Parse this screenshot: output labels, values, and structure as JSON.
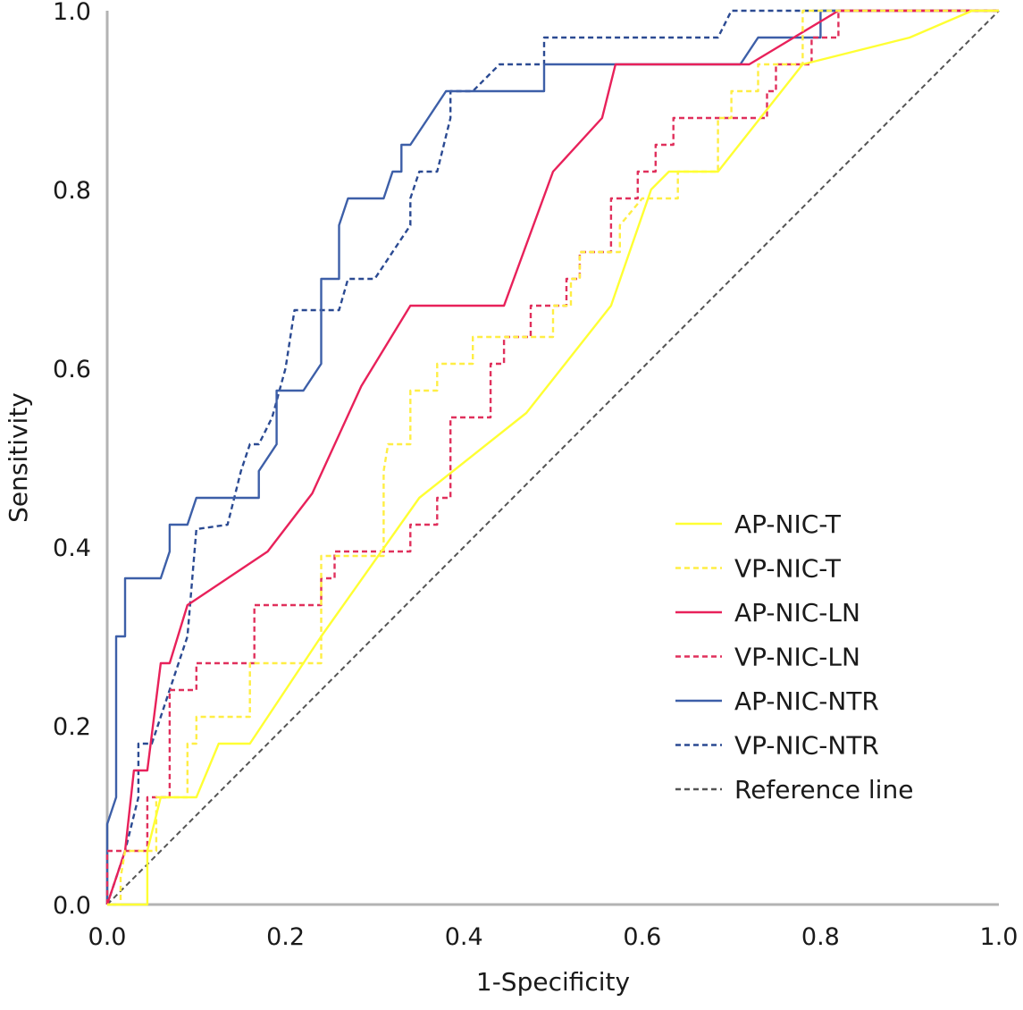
{
  "chart_data": {
    "type": "line",
    "xlabel": "1-Specificity",
    "ylabel": "Sensitivity",
    "xlim": [
      0,
      1
    ],
    "ylim": [
      0,
      1
    ],
    "x_ticks": [
      "0.0",
      "0.2",
      "0.4",
      "0.6",
      "0.8",
      "1.0"
    ],
    "y_ticks": [
      "0.0",
      "0.2",
      "0.4",
      "0.6",
      "0.8",
      "1.0"
    ],
    "grid": false,
    "legend_position": "bottom-right",
    "series": [
      {
        "name": "AP-NIC-T",
        "color": "#ffff33",
        "dashed": false,
        "points": [
          [
            0,
            0
          ],
          [
            0.045,
            0
          ],
          [
            0.045,
            0.06
          ],
          [
            0.06,
            0.12
          ],
          [
            0.1,
            0.12
          ],
          [
            0.125,
            0.18
          ],
          [
            0.16,
            0.18
          ],
          [
            0.24,
            0.3
          ],
          [
            0.35,
            0.455
          ],
          [
            0.47,
            0.55
          ],
          [
            0.565,
            0.67
          ],
          [
            0.61,
            0.8
          ],
          [
            0.63,
            0.82
          ],
          [
            0.685,
            0.82
          ],
          [
            0.78,
            0.94
          ],
          [
            0.9,
            0.97
          ],
          [
            0.97,
            1
          ],
          [
            1,
            1
          ]
        ]
      },
      {
        "name": "VP-NIC-T",
        "color": "#ffee44",
        "dashed": true,
        "points": [
          [
            0,
            0
          ],
          [
            0.015,
            0
          ],
          [
            0.015,
            0.03
          ],
          [
            0.02,
            0.06
          ],
          [
            0.055,
            0.06
          ],
          [
            0.055,
            0.12
          ],
          [
            0.09,
            0.12
          ],
          [
            0.09,
            0.18
          ],
          [
            0.1,
            0.18
          ],
          [
            0.1,
            0.21
          ],
          [
            0.16,
            0.21
          ],
          [
            0.16,
            0.27
          ],
          [
            0.24,
            0.27
          ],
          [
            0.24,
            0.39
          ],
          [
            0.31,
            0.39
          ],
          [
            0.31,
            0.485
          ],
          [
            0.315,
            0.515
          ],
          [
            0.34,
            0.515
          ],
          [
            0.34,
            0.575
          ],
          [
            0.37,
            0.575
          ],
          [
            0.37,
            0.605
          ],
          [
            0.41,
            0.605
          ],
          [
            0.41,
            0.635
          ],
          [
            0.5,
            0.635
          ],
          [
            0.5,
            0.67
          ],
          [
            0.52,
            0.67
          ],
          [
            0.52,
            0.7
          ],
          [
            0.53,
            0.7
          ],
          [
            0.53,
            0.73
          ],
          [
            0.575,
            0.73
          ],
          [
            0.575,
            0.76
          ],
          [
            0.6,
            0.79
          ],
          [
            0.64,
            0.79
          ],
          [
            0.64,
            0.82
          ],
          [
            0.685,
            0.82
          ],
          [
            0.685,
            0.88
          ],
          [
            0.7,
            0.88
          ],
          [
            0.7,
            0.91
          ],
          [
            0.73,
            0.91
          ],
          [
            0.73,
            0.94
          ],
          [
            0.78,
            0.94
          ],
          [
            0.78,
            1
          ],
          [
            1,
            1
          ]
        ]
      },
      {
        "name": "AP-NIC-LN",
        "color": "#e8215a",
        "dashed": false,
        "points": [
          [
            0,
            0
          ],
          [
            0.02,
            0.06
          ],
          [
            0.03,
            0.15
          ],
          [
            0.045,
            0.15
          ],
          [
            0.06,
            0.27
          ],
          [
            0.07,
            0.27
          ],
          [
            0.09,
            0.335
          ],
          [
            0.18,
            0.395
          ],
          [
            0.23,
            0.46
          ],
          [
            0.285,
            0.58
          ],
          [
            0.34,
            0.67
          ],
          [
            0.445,
            0.67
          ],
          [
            0.5,
            0.82
          ],
          [
            0.555,
            0.88
          ],
          [
            0.57,
            0.94
          ],
          [
            0.72,
            0.94
          ],
          [
            0.77,
            0.97
          ],
          [
            0.82,
            1
          ],
          [
            1,
            1
          ]
        ]
      },
      {
        "name": "VP-NIC-LN",
        "color": "#e0305c",
        "dashed": true,
        "points": [
          [
            0,
            0
          ],
          [
            0,
            0.06
          ],
          [
            0.045,
            0.06
          ],
          [
            0.045,
            0.12
          ],
          [
            0.07,
            0.12
          ],
          [
            0.07,
            0.24
          ],
          [
            0.1,
            0.24
          ],
          [
            0.1,
            0.27
          ],
          [
            0.165,
            0.27
          ],
          [
            0.165,
            0.335
          ],
          [
            0.24,
            0.335
          ],
          [
            0.24,
            0.365
          ],
          [
            0.255,
            0.365
          ],
          [
            0.255,
            0.395
          ],
          [
            0.34,
            0.395
          ],
          [
            0.34,
            0.425
          ],
          [
            0.37,
            0.425
          ],
          [
            0.37,
            0.455
          ],
          [
            0.385,
            0.455
          ],
          [
            0.385,
            0.545
          ],
          [
            0.43,
            0.545
          ],
          [
            0.43,
            0.605
          ],
          [
            0.445,
            0.605
          ],
          [
            0.445,
            0.635
          ],
          [
            0.475,
            0.635
          ],
          [
            0.475,
            0.67
          ],
          [
            0.515,
            0.67
          ],
          [
            0.515,
            0.7
          ],
          [
            0.53,
            0.7
          ],
          [
            0.53,
            0.73
          ],
          [
            0.565,
            0.73
          ],
          [
            0.565,
            0.79
          ],
          [
            0.595,
            0.79
          ],
          [
            0.595,
            0.82
          ],
          [
            0.615,
            0.82
          ],
          [
            0.615,
            0.85
          ],
          [
            0.635,
            0.85
          ],
          [
            0.635,
            0.88
          ],
          [
            0.74,
            0.88
          ],
          [
            0.74,
            0.91
          ],
          [
            0.75,
            0.91
          ],
          [
            0.75,
            0.94
          ],
          [
            0.79,
            0.94
          ],
          [
            0.79,
            0.97
          ],
          [
            0.82,
            0.97
          ],
          [
            0.82,
            1
          ],
          [
            1,
            1
          ]
        ]
      },
      {
        "name": "AP-NIC-NTR",
        "color": "#3d5fa8",
        "dashed": false,
        "points": [
          [
            0,
            0
          ],
          [
            0,
            0.09
          ],
          [
            0.01,
            0.12
          ],
          [
            0.01,
            0.3
          ],
          [
            0.02,
            0.3
          ],
          [
            0.02,
            0.365
          ],
          [
            0.06,
            0.365
          ],
          [
            0.07,
            0.395
          ],
          [
            0.07,
            0.425
          ],
          [
            0.09,
            0.425
          ],
          [
            0.1,
            0.455
          ],
          [
            0.17,
            0.455
          ],
          [
            0.17,
            0.485
          ],
          [
            0.19,
            0.515
          ],
          [
            0.19,
            0.575
          ],
          [
            0.22,
            0.575
          ],
          [
            0.24,
            0.605
          ],
          [
            0.24,
            0.7
          ],
          [
            0.26,
            0.7
          ],
          [
            0.26,
            0.76
          ],
          [
            0.27,
            0.79
          ],
          [
            0.31,
            0.79
          ],
          [
            0.32,
            0.82
          ],
          [
            0.33,
            0.82
          ],
          [
            0.33,
            0.85
          ],
          [
            0.34,
            0.85
          ],
          [
            0.36,
            0.88
          ],
          [
            0.38,
            0.91
          ],
          [
            0.49,
            0.91
          ],
          [
            0.49,
            0.94
          ],
          [
            0.71,
            0.94
          ],
          [
            0.73,
            0.97
          ],
          [
            0.8,
            0.97
          ],
          [
            0.8,
            1
          ],
          [
            1,
            1
          ]
        ]
      },
      {
        "name": "VP-NIC-NTR",
        "color": "#2b4a92",
        "dashed": true,
        "points": [
          [
            0,
            0
          ],
          [
            0.02,
            0.06
          ],
          [
            0.035,
            0.12
          ],
          [
            0.035,
            0.18
          ],
          [
            0.05,
            0.18
          ],
          [
            0.06,
            0.21
          ],
          [
            0.09,
            0.3
          ],
          [
            0.1,
            0.42
          ],
          [
            0.135,
            0.425
          ],
          [
            0.15,
            0.485
          ],
          [
            0.16,
            0.515
          ],
          [
            0.17,
            0.515
          ],
          [
            0.185,
            0.545
          ],
          [
            0.2,
            0.6
          ],
          [
            0.21,
            0.665
          ],
          [
            0.26,
            0.665
          ],
          [
            0.27,
            0.7
          ],
          [
            0.3,
            0.7
          ],
          [
            0.34,
            0.76
          ],
          [
            0.34,
            0.79
          ],
          [
            0.35,
            0.82
          ],
          [
            0.37,
            0.82
          ],
          [
            0.385,
            0.88
          ],
          [
            0.385,
            0.91
          ],
          [
            0.41,
            0.91
          ],
          [
            0.44,
            0.94
          ],
          [
            0.49,
            0.94
          ],
          [
            0.49,
            0.97
          ],
          [
            0.685,
            0.97
          ],
          [
            0.7,
            1
          ],
          [
            1,
            1
          ]
        ]
      },
      {
        "name": "Reference line",
        "color": "#555555",
        "dashed": true,
        "points": [
          [
            0,
            0
          ],
          [
            1,
            1
          ]
        ]
      }
    ]
  }
}
